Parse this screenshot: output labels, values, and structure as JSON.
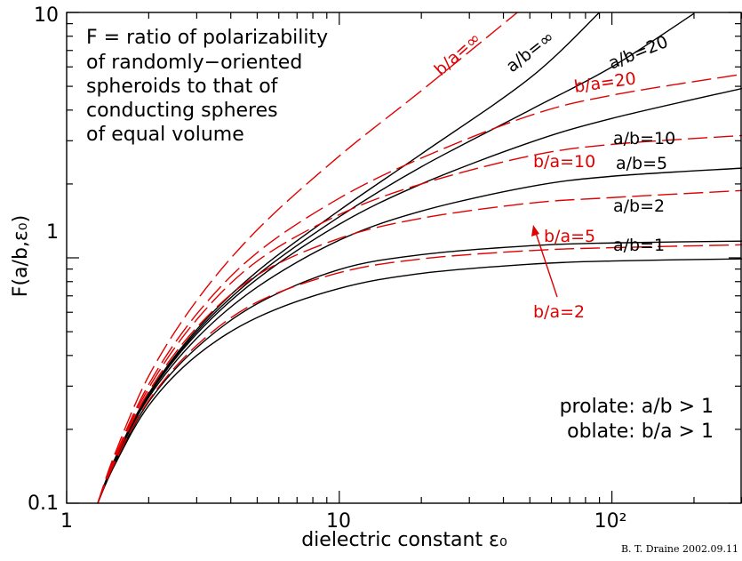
{
  "chart_data": {
    "type": "line",
    "xscale": "log",
    "yscale": "log",
    "xlim": [
      1,
      300
    ],
    "ylim": [
      0.1,
      10
    ],
    "xlabel": "dielectric constant ε₀",
    "ylabel": "F(a/b,ε₀)",
    "x_tick_labels": [
      "1",
      "10",
      "10²"
    ],
    "y_tick_labels": [
      "0.1",
      "1",
      "10"
    ],
    "note_lines": [
      "F = ratio of polarizability",
      "of randomly−oriented",
      "spheroids to that of",
      "conducting spheres",
      "of equal volume"
    ],
    "legend_lines": [
      "prolate: a/b > 1",
      "oblate: b/a > 1"
    ],
    "credit": "B. T. Draine 2002.09.11",
    "colors": {
      "prolate": "#000000",
      "oblate": "#e00000"
    },
    "series": [
      {
        "name": "a/b=1",
        "kind": "prolate",
        "x": [
          1.3,
          1.5,
          2,
          3,
          5,
          10,
          20,
          50,
          100,
          300
        ],
        "y": [
          0.1,
          0.143,
          0.25,
          0.4,
          0.571,
          0.75,
          0.864,
          0.942,
          0.971,
          0.99
        ]
      },
      {
        "name": "a/b=2",
        "kind": "prolate",
        "x": [
          1.3,
          1.5,
          2,
          3,
          5,
          10,
          20,
          50,
          100,
          300
        ],
        "y": [
          0.1,
          0.145,
          0.259,
          0.43,
          0.65,
          0.896,
          1.03,
          1.12,
          1.15,
          1.17
        ]
      },
      {
        "name": "a/b=5",
        "kind": "prolate",
        "x": [
          1.3,
          1.5,
          2,
          3,
          5,
          10,
          20,
          50,
          100,
          300
        ],
        "y": [
          0.1,
          0.148,
          0.27,
          0.47,
          0.76,
          1.18,
          1.55,
          1.95,
          2.15,
          2.32
        ]
      },
      {
        "name": "a/b=10",
        "kind": "prolate",
        "x": [
          1.3,
          1.5,
          2,
          3,
          5,
          10,
          20,
          50,
          100,
          300
        ],
        "y": [
          0.1,
          0.149,
          0.275,
          0.49,
          0.82,
          1.37,
          2.0,
          2.95,
          3.7,
          4.9
        ]
      },
      {
        "name": "a/b=20",
        "kind": "prolate",
        "x": [
          1.3,
          1.5,
          2,
          3,
          5,
          10,
          20,
          50,
          100,
          200
        ],
        "y": [
          0.1,
          0.15,
          0.277,
          0.5,
          0.85,
          1.47,
          2.35,
          4.0,
          6.0,
          9.9
        ]
      },
      {
        "name": "a/b=∞",
        "kind": "prolate",
        "x": [
          1.3,
          1.5,
          2,
          3,
          5,
          10,
          20,
          50,
          90
        ],
        "y": [
          0.1,
          0.151,
          0.28,
          0.51,
          0.88,
          1.56,
          2.65,
          5.4,
          10.0
        ]
      },
      {
        "name": "b/a=2",
        "kind": "oblate",
        "x": [
          1.3,
          1.5,
          2,
          3,
          5,
          10,
          20,
          50,
          100,
          300
        ],
        "y": [
          0.1,
          0.146,
          0.262,
          0.44,
          0.66,
          0.87,
          0.99,
          1.07,
          1.1,
          1.13
        ]
      },
      {
        "name": "b/a=5",
        "kind": "oblate",
        "x": [
          1.3,
          1.5,
          2,
          3,
          5,
          10,
          20,
          50,
          100,
          300
        ],
        "y": [
          0.1,
          0.15,
          0.285,
          0.52,
          0.85,
          1.2,
          1.45,
          1.67,
          1.76,
          1.88
        ]
      },
      {
        "name": "b/a=10",
        "kind": "oblate",
        "x": [
          1.3,
          1.5,
          2,
          3,
          5,
          10,
          20,
          50,
          100,
          300
        ],
        "y": [
          0.1,
          0.152,
          0.295,
          0.56,
          0.97,
          1.5,
          2.0,
          2.6,
          2.9,
          3.15
        ]
      },
      {
        "name": "b/a=20",
        "kind": "oblate",
        "x": [
          1.3,
          1.5,
          2,
          3,
          5,
          10,
          20,
          50,
          100,
          300
        ],
        "y": [
          0.1,
          0.154,
          0.305,
          0.59,
          1.05,
          1.75,
          2.55,
          3.8,
          4.6,
          5.6
        ]
      },
      {
        "name": "b/a=∞",
        "kind": "oblate",
        "x": [
          1.3,
          1.5,
          2,
          3,
          5,
          10,
          20,
          45
        ],
        "y": [
          0.1,
          0.158,
          0.33,
          0.67,
          1.3,
          2.6,
          4.8,
          10.0
        ]
      }
    ],
    "labels": [
      {
        "text": "a/b=∞",
        "kind": "prolate"
      },
      {
        "text": "a/b=20",
        "kind": "prolate"
      },
      {
        "text": "a/b=10",
        "kind": "prolate"
      },
      {
        "text": "a/b=5",
        "kind": "prolate"
      },
      {
        "text": "a/b=2",
        "kind": "prolate"
      },
      {
        "text": "a/b=1",
        "kind": "prolate"
      },
      {
        "text": "b/a=∞",
        "kind": "oblate"
      },
      {
        "text": "b/a=20",
        "kind": "oblate"
      },
      {
        "text": "b/a=10",
        "kind": "oblate"
      },
      {
        "text": "b/a=5",
        "kind": "oblate"
      },
      {
        "text": "b/a=2",
        "kind": "oblate"
      }
    ]
  }
}
